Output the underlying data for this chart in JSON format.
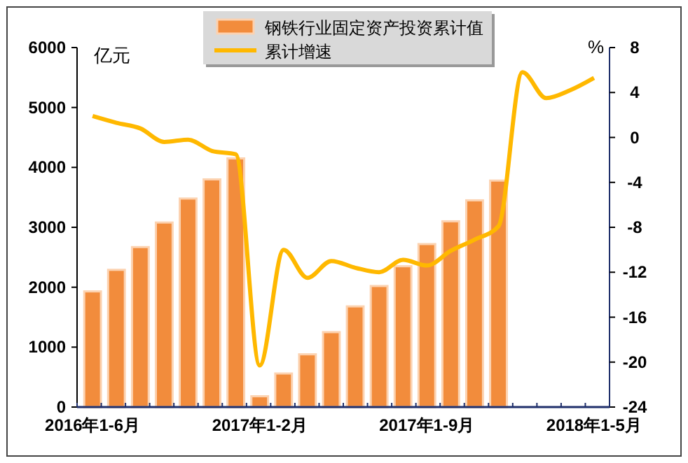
{
  "chart_data": {
    "type": "bar",
    "ylabel": "亿元",
    "y2label": "%",
    "categories": [
      "2016年1-6月",
      null,
      null,
      null,
      null,
      null,
      null,
      "2017年1-2月",
      null,
      null,
      null,
      null,
      null,
      null,
      "2017年1-9月",
      null,
      null,
      null,
      null,
      null,
      null,
      "2018年1-5月"
    ],
    "series": [
      {
        "name": "钢铁行业固定资产投资累计值",
        "color": "#f28c3c",
        "values": [
          1930,
          2290,
          2670,
          3080,
          3480,
          3800,
          4150,
          180,
          560,
          880,
          1250,
          1680,
          2020,
          2350,
          2720,
          3100,
          3450,
          3780,
          null,
          null,
          null,
          null
        ]
      },
      {
        "name": "累计增速",
        "type": "line",
        "axis": "y2",
        "color": "#ffb800",
        "values": [
          1.9,
          1.3,
          0.8,
          -0.4,
          -0.2,
          -1.2,
          -1.5,
          -20.3,
          -10,
          -12.5,
          -11,
          -11.6,
          -12,
          -10.9,
          -11.4,
          -10.1,
          -9.1,
          -7.9,
          5.8,
          3.5,
          4.2,
          5.3
        ]
      }
    ],
    "ylim": [
      0,
      6000
    ],
    "yticks": [
      0,
      1000,
      2000,
      3000,
      4000,
      5000,
      6000
    ],
    "y2lim": [
      -24,
      8
    ],
    "y2ticks": [
      -24,
      -20,
      -16,
      -12,
      -8,
      -4,
      0,
      4,
      8
    ],
    "legend": "top",
    "grid": false
  }
}
